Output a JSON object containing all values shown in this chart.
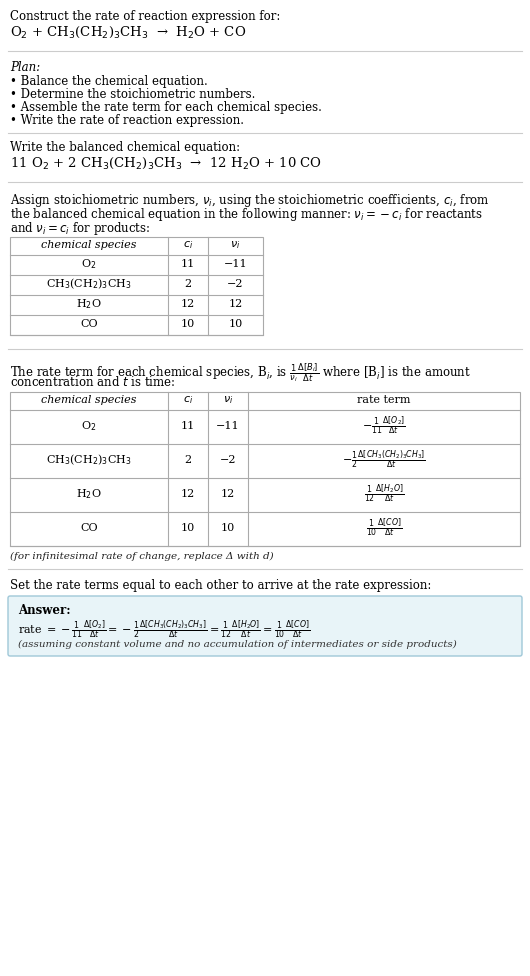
{
  "bg_color": "#ffffff",
  "text_color": "#000000",
  "title_line1": "Construct the rate of reaction expression for:",
  "reaction_unbalanced": "O$_2$ + CH$_3$(CH$_2$)$_3$CH$_3$  →  H$_2$O + CO",
  "plan_header": "Plan:",
  "plan_items": [
    "• Balance the chemical equation.",
    "• Determine the stoichiometric numbers.",
    "• Assemble the rate term for each chemical species.",
    "• Write the rate of reaction expression."
  ],
  "balanced_header": "Write the balanced chemical equation:",
  "balanced_eq": "11 O$_2$ + 2 CH$_3$(CH$_2$)$_3$CH$_3$  →  12 H$_2$O + 10 CO",
  "stoich_intro_lines": [
    "Assign stoichiometric numbers, $\\nu_i$, using the stoichiometric coefficients, $c_i$, from",
    "the balanced chemical equation in the following manner: $\\nu_i = -c_i$ for reactants",
    "and $\\nu_i = c_i$ for products:"
  ],
  "table1_headers": [
    "chemical species",
    "$c_i$",
    "$\\nu_i$"
  ],
  "table1_rows": [
    [
      "O$_2$",
      "11",
      "−11"
    ],
    [
      "CH$_3$(CH$_2$)$_3$CH$_3$",
      "2",
      "−2"
    ],
    [
      "H$_2$O",
      "12",
      "12"
    ],
    [
      "CO",
      "10",
      "10"
    ]
  ],
  "rate_term_intro_lines": [
    "The rate term for each chemical species, B$_i$, is $\\frac{1}{\\nu_i}\\frac{\\Delta[B_i]}{\\Delta t}$ where [B$_i$] is the amount",
    "concentration and $t$ is time:"
  ],
  "table2_headers": [
    "chemical species",
    "$c_i$",
    "$\\nu_i$",
    "rate term"
  ],
  "table2_rows": [
    [
      "O$_2$",
      "11",
      "−11",
      "$-\\frac{1}{11}\\frac{\\Delta[O_2]}{\\Delta t}$"
    ],
    [
      "CH$_3$(CH$_2$)$_3$CH$_3$",
      "2",
      "−2",
      "$-\\frac{1}{2}\\frac{\\Delta[CH_3(CH_2)_3CH_3]}{\\Delta t}$"
    ],
    [
      "H$_2$O",
      "12",
      "12",
      "$\\frac{1}{12}\\frac{\\Delta[H_2O]}{\\Delta t}$"
    ],
    [
      "CO",
      "10",
      "10",
      "$\\frac{1}{10}\\frac{\\Delta[CO]}{\\Delta t}$"
    ]
  ],
  "infinitesimal_note": "(for infinitesimal rate of change, replace Δ with d)",
  "set_equal_text": "Set the rate terms equal to each other to arrive at the rate expression:",
  "answer_label": "Answer:",
  "answer_box_color": "#e8f4f8",
  "answer_box_border": "#a0c8d8",
  "rate_expression": "rate $= -\\frac{1}{11}\\frac{\\Delta[O_2]}{\\Delta t} = -\\frac{1}{2}\\frac{\\Delta[CH_3(CH_2)_3CH_3]}{\\Delta t} = \\frac{1}{12}\\frac{\\Delta[H_2O]}{\\Delta t} = \\frac{1}{10}\\frac{\\Delta[CO]}{\\Delta t}$",
  "assumption_note": "(assuming constant volume and no accumulation of intermediates or side products)",
  "fs": 8.5,
  "fs_small": 8.0,
  "fs_eq": 9.5
}
